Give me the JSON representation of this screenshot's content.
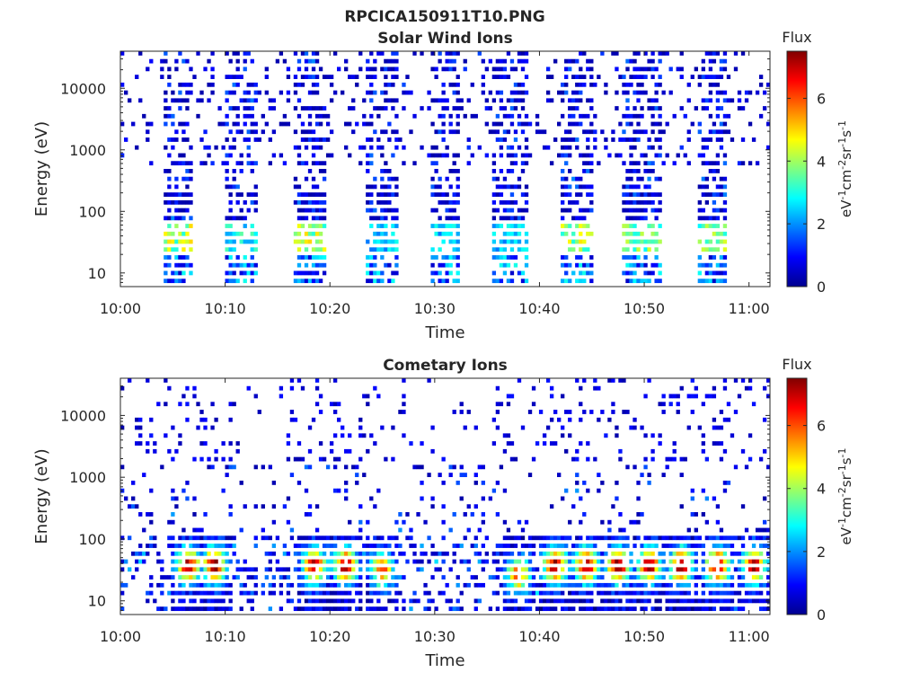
{
  "figure_title": "RPCICA150911T10.PNG",
  "chart_data": [
    {
      "type": "heatmap",
      "title": "Solar Wind Ions",
      "xlabel": "Time",
      "ylabel": "Energy (eV)",
      "x_ticks": [
        "10:00",
        "10:10",
        "10:20",
        "10:30",
        "10:40",
        "10:50",
        "11:00"
      ],
      "xlim": [
        "10:00",
        "11:02"
      ],
      "y_scale": "log",
      "y_ticks": [
        10,
        100,
        1000,
        10000
      ],
      "y_tick_labels": [
        "10",
        "100",
        "1000",
        "10000"
      ],
      "ylim": [
        6,
        40000
      ],
      "grid": false,
      "colorbar": {
        "title": "Flux",
        "label_base": "eV",
        "label_parts": [
          {
            "t": "eV",
            "sup": false
          },
          {
            "t": "-1",
            "sup": true
          },
          {
            "t": "cm",
            "sup": false
          },
          {
            "t": "-2",
            "sup": true
          },
          {
            "t": "sr",
            "sup": false
          },
          {
            "t": "-1",
            "sup": true
          },
          {
            "t": "s",
            "sup": false
          },
          {
            "t": "-1",
            "sup": true
          }
        ],
        "range": [
          0,
          7.5
        ],
        "ticks": [
          0,
          2,
          4,
          6
        ],
        "colormap": "jet"
      },
      "bursts": [
        {
          "start": "10:04",
          "end": "10:07",
          "peak_energy_eV": 35,
          "peak_flux": 5.0
        },
        {
          "start": "10:10",
          "end": "10:13",
          "peak_energy_eV": 35,
          "peak_flux": 3.5
        },
        {
          "start": "10:16.5",
          "end": "10:19.5",
          "peak_energy_eV": 35,
          "peak_flux": 5.0
        },
        {
          "start": "10:23.5",
          "end": "10:26.5",
          "peak_energy_eV": 35,
          "peak_flux": 3.0
        },
        {
          "start": "10:29.5",
          "end": "10:32.5",
          "peak_energy_eV": 35,
          "peak_flux": 3.0
        },
        {
          "start": "10:35.5",
          "end": "10:39",
          "peak_energy_eV": 35,
          "peak_flux": 3.0
        },
        {
          "start": "10:42",
          "end": "10:45",
          "peak_energy_eV": 35,
          "peak_flux": 5.0
        },
        {
          "start": "10:48",
          "end": "10:51.5",
          "peak_energy_eV": 35,
          "peak_flux": 4.5
        },
        {
          "start": "10:55",
          "end": "10:58",
          "peak_energy_eV": 35,
          "peak_flux": 4.5
        }
      ]
    },
    {
      "type": "heatmap",
      "title": "Cometary Ions",
      "xlabel": "Time",
      "ylabel": "Energy (eV)",
      "x_ticks": [
        "10:00",
        "10:10",
        "10:20",
        "10:30",
        "10:40",
        "10:50",
        "11:00"
      ],
      "xlim": [
        "10:00",
        "11:02"
      ],
      "y_scale": "log",
      "y_ticks": [
        10,
        100,
        1000,
        10000
      ],
      "y_tick_labels": [
        "10",
        "100",
        "1000",
        "10000"
      ],
      "ylim": [
        6,
        40000
      ],
      "grid": false,
      "colorbar": {
        "title": "Flux",
        "label_parts": [
          {
            "t": "eV",
            "sup": false
          },
          {
            "t": "-1",
            "sup": true
          },
          {
            "t": "cm",
            "sup": false
          },
          {
            "t": "-2",
            "sup": true
          },
          {
            "t": "sr",
            "sup": false
          },
          {
            "t": "-1",
            "sup": true
          },
          {
            "t": "s",
            "sup": false
          },
          {
            "t": "-1",
            "sup": true
          }
        ],
        "range": [
          0,
          7.5
        ],
        "ticks": [
          0,
          2,
          4,
          6
        ],
        "colormap": "jet"
      },
      "peaks": [
        {
          "time": "10:06.5",
          "energy_eV": 35,
          "flux": 6.5
        },
        {
          "time": "10:09",
          "energy_eV": 35,
          "flux": 7.2
        },
        {
          "time": "10:18.5",
          "energy_eV": 35,
          "flux": 6.5
        },
        {
          "time": "10:21.5",
          "energy_eV": 35,
          "flux": 7.0
        },
        {
          "time": "10:25",
          "energy_eV": 30,
          "flux": 5.5
        },
        {
          "time": "10:38",
          "energy_eV": 25,
          "flux": 5.5
        },
        {
          "time": "10:41.5",
          "energy_eV": 35,
          "flux": 7.0
        },
        {
          "time": "10:44.5",
          "energy_eV": 35,
          "flux": 7.0
        },
        {
          "time": "10:47.5",
          "energy_eV": 35,
          "flux": 7.0
        },
        {
          "time": "10:50.5",
          "energy_eV": 35,
          "flux": 6.8
        },
        {
          "time": "10:53.5",
          "energy_eV": 35,
          "flux": 6.8
        },
        {
          "time": "10:57",
          "energy_eV": 35,
          "flux": 7.0
        },
        {
          "time": "11:00.5",
          "energy_eV": 35,
          "flux": 6.8
        }
      ]
    }
  ]
}
